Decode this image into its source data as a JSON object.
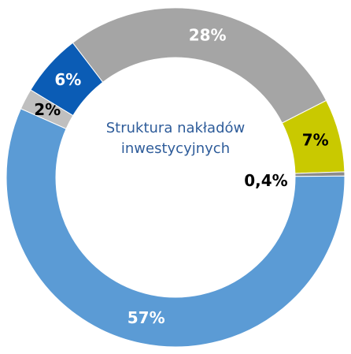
{
  "chart_data": {
    "type": "donut",
    "title": "Struktura nakładów inwestycyjnych",
    "categories": [
      null,
      null,
      null,
      null,
      null,
      null
    ],
    "values": [
      7,
      0.4,
      57,
      2,
      6,
      28
    ],
    "value_labels": [
      "7%",
      "0,4%",
      "57%",
      "2%",
      "6%",
      "28%"
    ],
    "colors": [
      "#c9c900",
      "#8c8c8c",
      "#5b9bd5",
      "#bfbfbf",
      "#0b5cb5",
      "#a5a5a5"
    ]
  }
}
